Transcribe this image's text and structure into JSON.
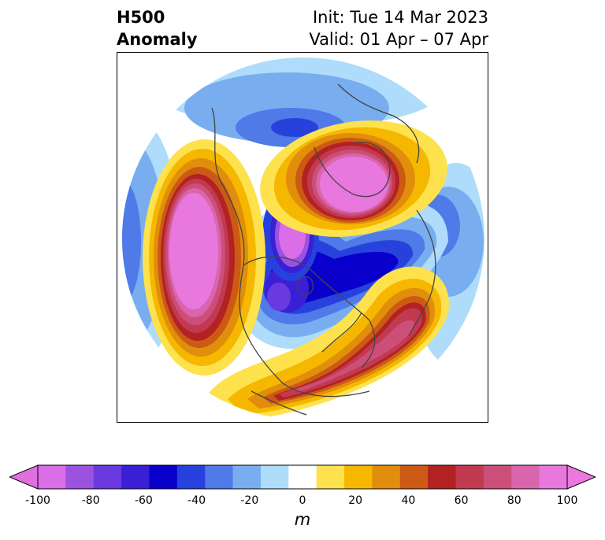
{
  "header": {
    "field": "H500",
    "type": "Anomaly",
    "init": "Init: Tue 14 Mar 2023",
    "valid": "Valid: 01 Apr – 07 Apr"
  },
  "map": {
    "projection": "north-polar-stereographic",
    "features": [
      {
        "name": "west-coast-ridge",
        "sign": "positive",
        "value": 100
      },
      {
        "name": "greenland-ridge",
        "sign": "positive",
        "value": 100
      },
      {
        "name": "atlantic-ridge",
        "sign": "positive",
        "value": 80
      },
      {
        "name": "central-canada-trough",
        "sign": "negative",
        "value": -100
      },
      {
        "name": "arctic-trough",
        "sign": "negative",
        "value": -60
      }
    ]
  },
  "colorbar": {
    "unit": "m",
    "ticks": [
      "-100",
      "-80",
      "-60",
      "-40",
      "-20",
      "0",
      "20",
      "40",
      "60",
      "80",
      "100"
    ],
    "levels": [
      -100,
      -90,
      -80,
      -70,
      -60,
      -50,
      -40,
      -30,
      -20,
      -10,
      10,
      20,
      30,
      40,
      50,
      60,
      70,
      80,
      90,
      100
    ],
    "colors": [
      "#d96ee6",
      "#9a52df",
      "#6a3ae0",
      "#3a1fd6",
      "#0a00cc",
      "#2742dc",
      "#4f7ae8",
      "#78aef0",
      "#aedcfa",
      "#ffffff",
      "#fee24d",
      "#f5b700",
      "#e08e0b",
      "#cc5a14",
      "#b32222",
      "#c23a52",
      "#cc4f7a",
      "#d966ad",
      "#e878dd"
    ],
    "under_color": "#e06fe0",
    "over_color": "#ea78df"
  }
}
